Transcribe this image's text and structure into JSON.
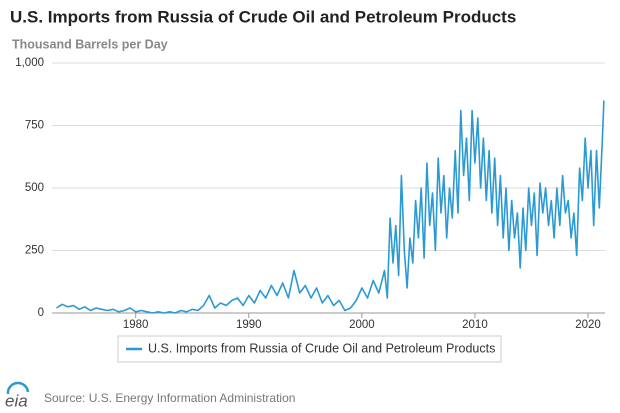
{
  "chart_data": {
    "type": "line",
    "title": "U.S. Imports from Russia of Crude Oil and Petroleum Products",
    "subtitle": "Thousand Barrels per Day",
    "x": [
      1973.0,
      1973.5,
      1974.0,
      1974.5,
      1975.0,
      1975.5,
      1976.0,
      1976.5,
      1977.0,
      1977.5,
      1978.0,
      1978.5,
      1979.0,
      1979.5,
      1980.0,
      1980.5,
      1981.0,
      1981.5,
      1982.0,
      1982.5,
      1983.0,
      1983.5,
      1984.0,
      1984.5,
      1985.0,
      1985.5,
      1986.0,
      1986.5,
      1987.0,
      1987.5,
      1988.0,
      1988.5,
      1989.0,
      1989.5,
      1990.0,
      1990.5,
      1991.0,
      1991.5,
      1992.0,
      1992.5,
      1993.0,
      1993.5,
      1994.0,
      1994.5,
      1995.0,
      1995.5,
      1996.0,
      1996.5,
      1997.0,
      1997.5,
      1998.0,
      1998.5,
      1999.0,
      1999.5,
      2000.0,
      2000.5,
      2001.0,
      2001.5,
      2002.0,
      2002.25,
      2002.5,
      2002.75,
      2003.0,
      2003.25,
      2003.5,
      2003.75,
      2004.0,
      2004.25,
      2004.5,
      2004.75,
      2005.0,
      2005.25,
      2005.5,
      2005.75,
      2006.0,
      2006.25,
      2006.5,
      2006.75,
      2007.0,
      2007.25,
      2007.5,
      2007.75,
      2008.0,
      2008.25,
      2008.5,
      2008.75,
      2009.0,
      2009.25,
      2009.5,
      2009.75,
      2010.0,
      2010.25,
      2010.5,
      2010.75,
      2011.0,
      2011.25,
      2011.5,
      2011.75,
      2012.0,
      2012.25,
      2012.5,
      2012.75,
      2013.0,
      2013.25,
      2013.5,
      2013.75,
      2014.0,
      2014.25,
      2014.5,
      2014.75,
      2015.0,
      2015.25,
      2015.5,
      2015.75,
      2016.0,
      2016.25,
      2016.5,
      2016.75,
      2017.0,
      2017.25,
      2017.5,
      2017.75,
      2018.0,
      2018.25,
      2018.5,
      2018.75,
      2019.0,
      2019.25,
      2019.5,
      2019.75,
      2020.0,
      2020.25,
      2020.5,
      2020.75,
      2021.0,
      2021.25,
      2021.4
    ],
    "series": [
      {
        "name": "U.S. Imports from Russia of Crude Oil and Petroleum Products",
        "color": "#2b9ad3",
        "values": [
          20,
          35,
          25,
          30,
          15,
          25,
          10,
          20,
          15,
          10,
          15,
          5,
          10,
          20,
          5,
          10,
          5,
          0,
          5,
          0,
          5,
          0,
          10,
          5,
          15,
          10,
          30,
          70,
          20,
          40,
          30,
          50,
          60,
          30,
          70,
          40,
          90,
          60,
          110,
          70,
          120,
          60,
          170,
          80,
          110,
          60,
          100,
          40,
          70,
          30,
          50,
          10,
          20,
          50,
          100,
          60,
          130,
          80,
          170,
          60,
          380,
          200,
          350,
          150,
          550,
          250,
          100,
          300,
          200,
          450,
          300,
          500,
          220,
          600,
          350,
          480,
          250,
          620,
          400,
          550,
          300,
          500,
          380,
          650,
          400,
          810,
          550,
          700,
          450,
          810,
          600,
          780,
          500,
          700,
          450,
          650,
          400,
          620,
          350,
          550,
          300,
          500,
          250,
          450,
          300,
          400,
          180,
          420,
          250,
          500,
          350,
          480,
          230,
          520,
          400,
          500,
          350,
          450,
          300,
          500,
          350,
          550,
          400,
          450,
          300,
          400,
          230,
          580,
          450,
          700,
          500,
          650,
          350,
          650,
          420,
          680,
          850
        ]
      }
    ],
    "xlim": [
      1972.6,
      2021.5
    ],
    "xticks": [
      1980,
      1990,
      2000,
      2010,
      2020
    ],
    "ylim": [
      0,
      1000
    ],
    "yticks": [
      0,
      250,
      500,
      750,
      {
        "value": 1000,
        "label": "1,000"
      }
    ],
    "grid": true
  },
  "logo": "eia",
  "source": "Source: U.S. Energy Information Administration"
}
